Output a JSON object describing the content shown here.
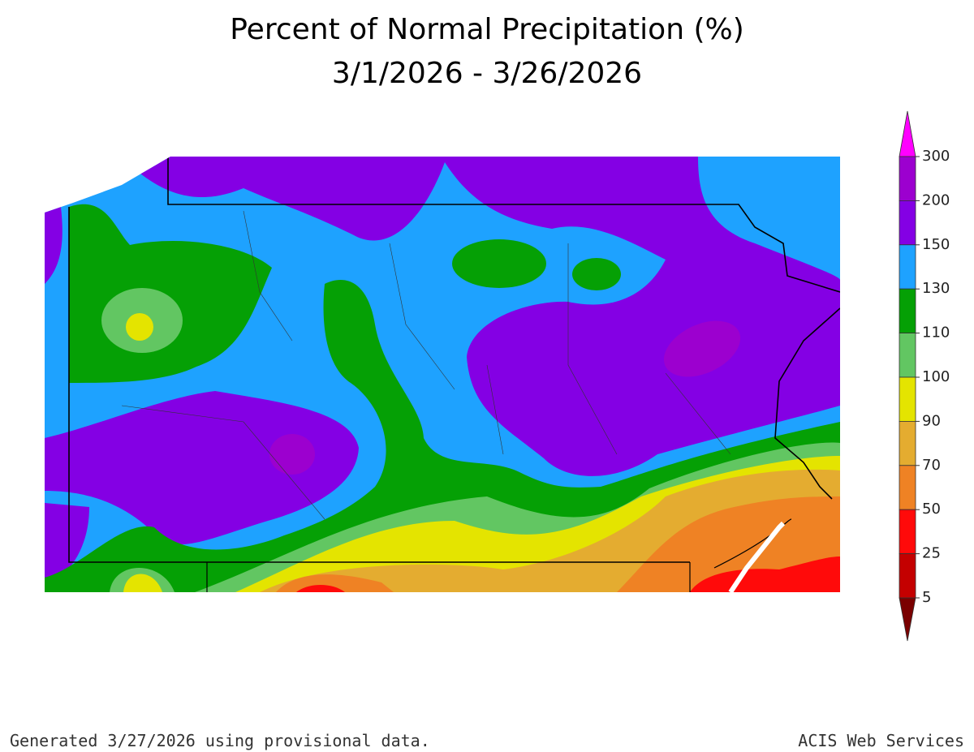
{
  "title": "Percent of Normal Precipitation (%)",
  "subtitle": "3/1/2026 - 3/26/2026",
  "legend": {
    "levels": [
      300,
      200,
      150,
      130,
      110,
      100,
      90,
      70,
      50,
      25,
      5
    ],
    "band_colors": [
      "#9c00cf",
      "#8400e4",
      "#1ea2ff",
      "#05a005",
      "#62c662",
      "#e4e400",
      "#e4ac30",
      "#ef8224",
      "#ff0a0a",
      "#c40000"
    ],
    "over_color": "#ff00ff",
    "under_color": "#7a0000"
  },
  "footer": {
    "left": "Generated 3/27/2026  using provisional data.",
    "right": "ACIS Web Services"
  }
}
